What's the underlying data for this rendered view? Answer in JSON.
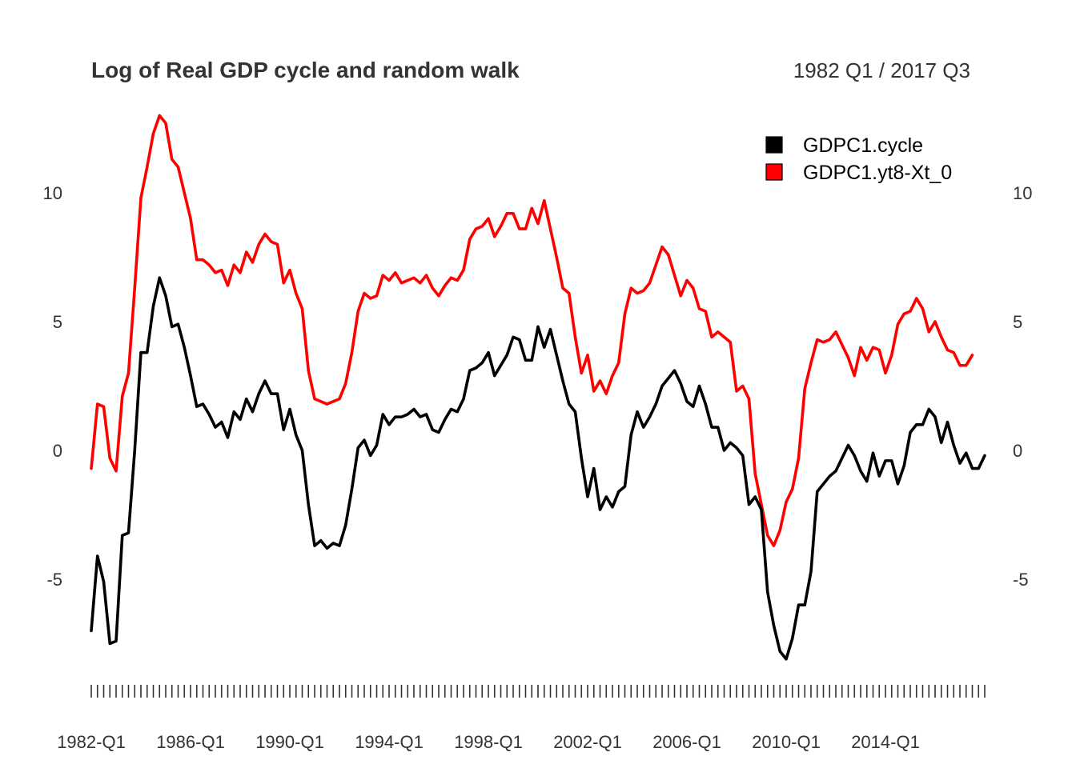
{
  "chart_data": {
    "type": "line",
    "title": "Log of Real GDP cycle and random walk",
    "subtitle": "1982 Q1 / 2017 Q3",
    "xlabel": "",
    "ylabel": "",
    "ylim": [
      -8.5,
      13.5
    ],
    "y_ticks": [
      -5,
      0,
      5,
      10
    ],
    "y_tick_labels": [
      "-5",
      "0",
      "5",
      "10"
    ],
    "x_tick_labels": [
      "1982-Q1",
      "1986-Q1",
      "1990-Q1",
      "1994-Q1",
      "1998-Q1",
      "2002-Q1",
      "2006-Q1",
      "2010-Q1",
      "2014-Q1"
    ],
    "x_start": "1982 Q1",
    "x_end": "2017 Q3",
    "grid": false,
    "legend_position": "top-right",
    "series": [
      {
        "name": "GDPC1.cycle",
        "color": "#000000",
        "values": [
          -7.0,
          -4.1,
          -5.1,
          -7.5,
          -7.4,
          -3.3,
          -3.2,
          0.0,
          3.8,
          3.8,
          5.6,
          6.7,
          6.0,
          4.8,
          4.9,
          4.0,
          2.9,
          1.7,
          1.8,
          1.4,
          0.9,
          1.1,
          0.5,
          1.5,
          1.2,
          2.0,
          1.5,
          2.2,
          2.7,
          2.2,
          2.2,
          0.8,
          1.6,
          0.6,
          0.0,
          -2.1,
          -3.7,
          -3.5,
          -3.8,
          -3.6,
          -3.7,
          -2.9,
          -1.5,
          0.1,
          0.4,
          -0.2,
          0.2,
          1.4,
          1.0,
          1.3,
          1.3,
          1.4,
          1.6,
          1.3,
          1.4,
          0.8,
          0.7,
          1.2,
          1.6,
          1.5,
          2.0,
          3.1,
          3.2,
          3.4,
          3.8,
          2.9,
          3.3,
          3.7,
          4.4,
          4.3,
          3.5,
          3.5,
          4.8,
          4.0,
          4.7,
          3.7,
          2.7,
          1.8,
          1.5,
          -0.3,
          -1.8,
          -0.7,
          -2.3,
          -1.8,
          -2.2,
          -1.6,
          -1.4,
          0.6,
          1.5,
          0.9,
          1.3,
          1.8,
          2.5,
          2.8,
          3.1,
          2.6,
          1.9,
          1.7,
          2.5,
          1.8,
          0.9,
          0.9,
          0.0,
          0.3,
          0.1,
          -0.2,
          -2.1,
          -1.8,
          -2.3,
          -5.5,
          -6.8,
          -7.8,
          -8.1,
          -7.3,
          -6.0,
          -6.0,
          -4.7,
          -1.6,
          -1.3,
          -1.0,
          -0.8,
          -0.3,
          0.2,
          -0.2,
          -0.8,
          -1.2,
          -0.1,
          -1.0,
          -0.4,
          -0.4,
          -1.3,
          -0.6,
          0.7,
          1.0,
          1.0,
          1.6,
          1.3,
          0.3,
          1.1,
          0.2,
          -0.5,
          -0.1,
          -0.7,
          -0.7,
          -0.2
        ]
      },
      {
        "name": "GDPC1.yt8-Xt_0",
        "color": "#ff0000",
        "values": [
          -0.7,
          1.8,
          1.7,
          -0.3,
          -0.8,
          2.1,
          3.0,
          6.3,
          9.8,
          11.0,
          12.3,
          13.0,
          12.7,
          11.3,
          11.0,
          10.0,
          9.0,
          7.4,
          7.4,
          7.2,
          6.9,
          7.0,
          6.4,
          7.2,
          6.9,
          7.7,
          7.3,
          8.0,
          8.4,
          8.1,
          8.0,
          6.5,
          7.0,
          6.1,
          5.5,
          3.1,
          2.0,
          1.9,
          1.8,
          1.9,
          2.0,
          2.6,
          3.8,
          5.4,
          6.1,
          5.9,
          6.0,
          6.8,
          6.6,
          6.9,
          6.5,
          6.6,
          6.7,
          6.5,
          6.8,
          6.3,
          6.0,
          6.4,
          6.7,
          6.6,
          7.0,
          8.2,
          8.6,
          8.7,
          9.0,
          8.3,
          8.7,
          9.2,
          9.2,
          8.6,
          8.6,
          9.4,
          8.8,
          9.7,
          8.6,
          7.5,
          6.3,
          6.1,
          4.4,
          3.0,
          3.7,
          2.3,
          2.7,
          2.2,
          2.9,
          3.4,
          5.3,
          6.3,
          6.1,
          6.2,
          6.5,
          7.2,
          7.9,
          7.6,
          6.8,
          6.0,
          6.6,
          6.3,
          5.5,
          5.4,
          4.4,
          4.6,
          4.4,
          4.2,
          2.3,
          2.5,
          2.0,
          -0.9,
          -2.1,
          -3.3,
          -3.7,
          -3.1,
          -2.0,
          -1.5,
          -0.3,
          2.4,
          3.4,
          4.3,
          4.2,
          4.3,
          4.6,
          4.1,
          3.6,
          2.9,
          4.0,
          3.5,
          4.0,
          3.9,
          3.0,
          3.7,
          4.9,
          5.3,
          5.4,
          5.9,
          5.5,
          4.6,
          5.0,
          4.4,
          3.9,
          3.8,
          3.3,
          3.3,
          3.7
        ]
      }
    ]
  }
}
